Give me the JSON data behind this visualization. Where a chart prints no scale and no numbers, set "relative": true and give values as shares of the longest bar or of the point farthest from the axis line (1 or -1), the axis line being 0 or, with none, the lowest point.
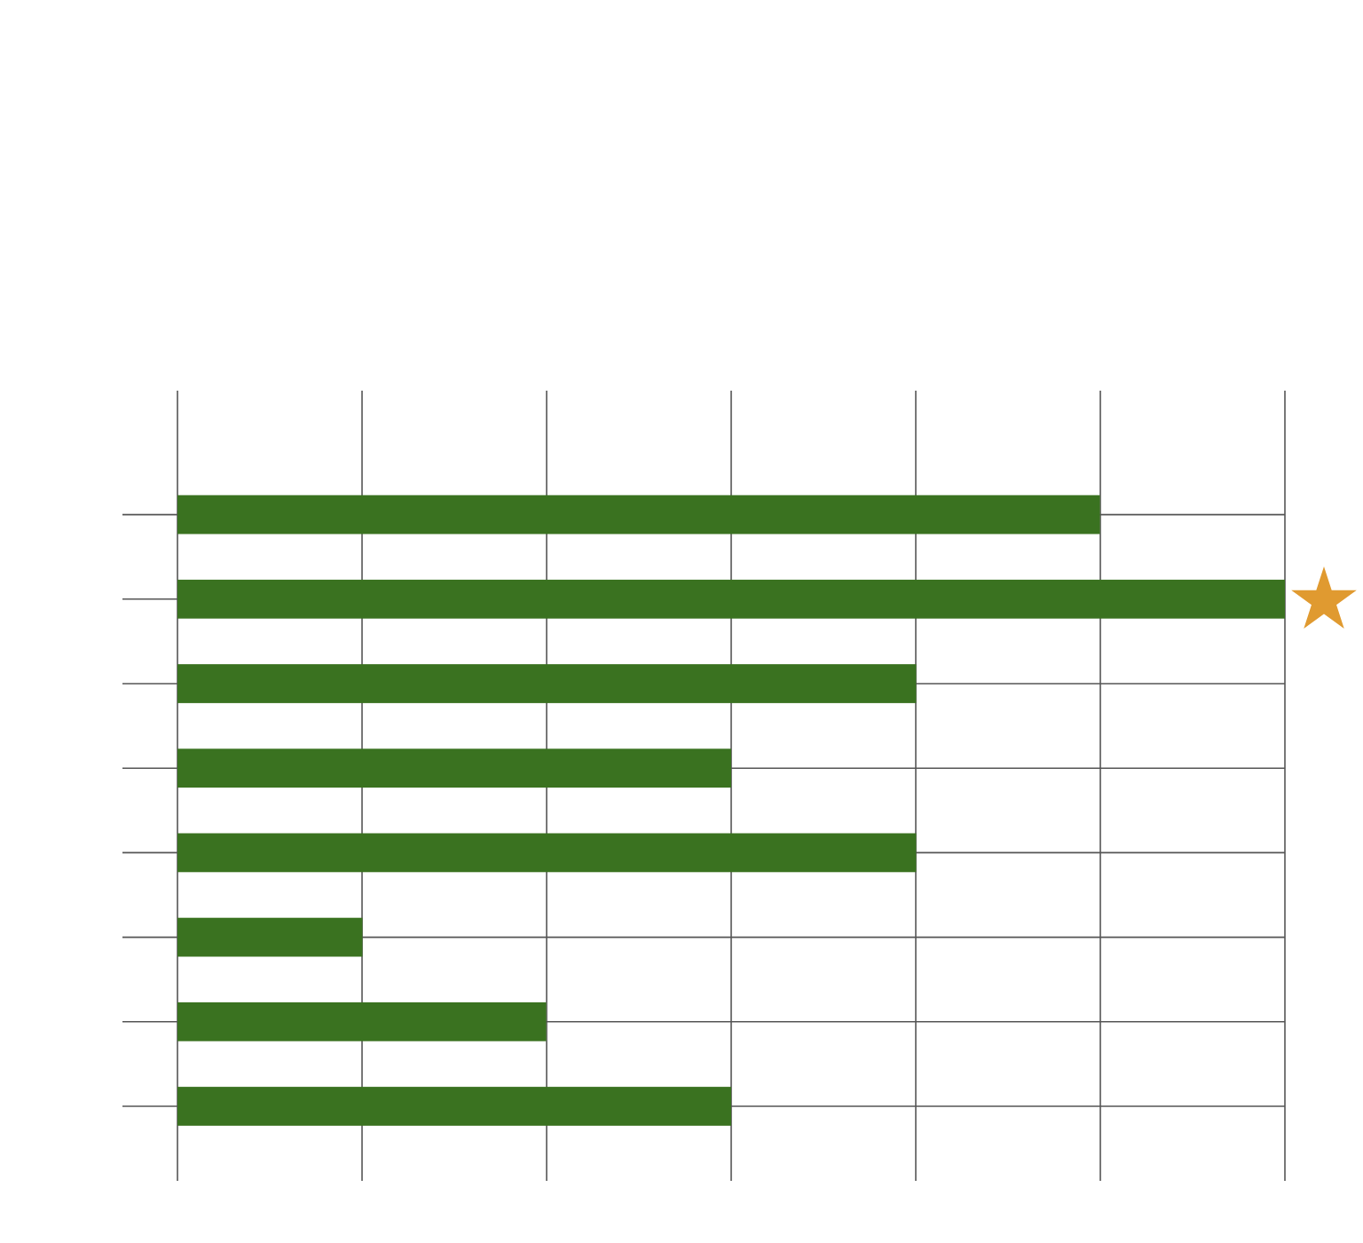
{
  "chart_data": {
    "type": "bar",
    "orientation": "horizontal",
    "relative": true,
    "grid": true,
    "categories": [
      null,
      null,
      null,
      null,
      null,
      null,
      null,
      null
    ],
    "values": [
      0.833,
      1,
      0.667,
      0.5,
      0.667,
      0.167,
      0.333,
      0.5
    ],
    "color": "#3a7220"
  }
}
